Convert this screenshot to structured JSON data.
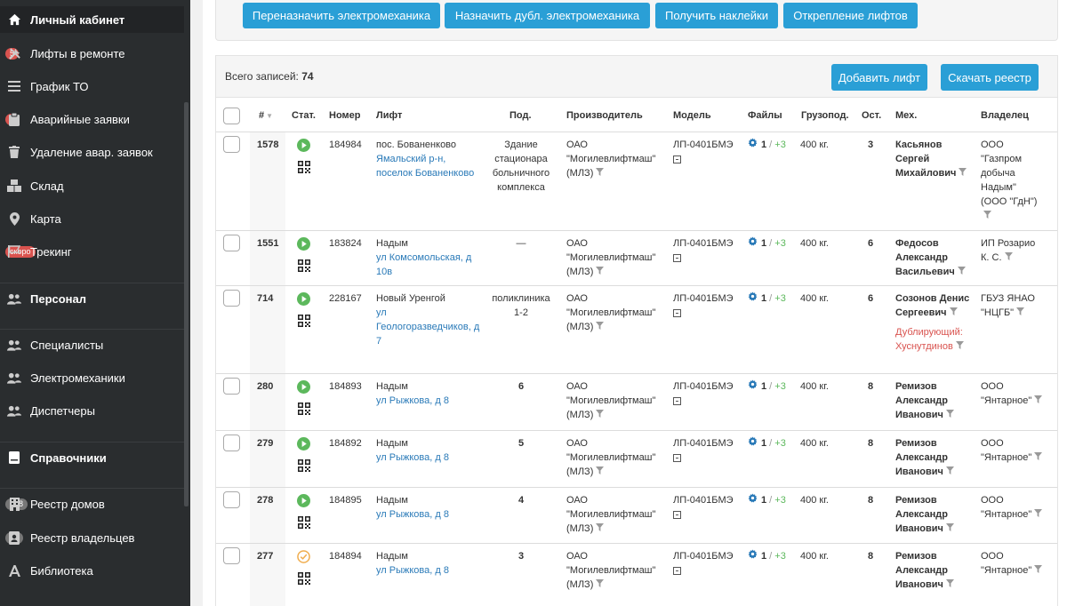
{
  "sidebar": {
    "items": [
      {
        "label": "Личный кабинет",
        "icon": "home-icon",
        "head": true
      },
      {
        "label": "Лифты в ремонте",
        "icon": "tools-icon",
        "badge": "5"
      },
      {
        "label": "График ТО",
        "icon": "list-icon"
      },
      {
        "label": "Аварийные заявки",
        "icon": "clipboard-icon",
        "badge": "9"
      },
      {
        "label": "Удаление авар. заявок",
        "icon": "trash-icon"
      },
      {
        "label": "Склад",
        "icon": "boxes-icon"
      },
      {
        "label": "Карта",
        "icon": "map-marker-icon"
      },
      {
        "label": "Трекинг",
        "icon": "flag-icon",
        "badge": "скоро"
      },
      {
        "label": "Персонал",
        "icon": "users-icon",
        "head": true
      },
      {
        "label": "Специалисты",
        "icon": "users-icon"
      },
      {
        "label": "Электромеханики",
        "icon": "users-icon"
      },
      {
        "label": "Диспетчеры",
        "icon": "users-icon"
      },
      {
        "label": "Справочники",
        "icon": "book-icon",
        "head": true
      },
      {
        "label": "Реестр домов",
        "icon": "building-icon",
        "badge": "158"
      },
      {
        "label": "Реестр владельцев",
        "icon": "id-card-icon",
        "badge": "58"
      },
      {
        "label": "Библиотека",
        "icon": "font-icon"
      }
    ]
  },
  "toolbar": {
    "reassign": "Переназначить электромеханика",
    "assign_dup": "Назначить дубл. электромеханика",
    "stickers": "Получить наклейки",
    "detach": "Открепление лифтов"
  },
  "table_header": {
    "total_label": "Всего записей:",
    "total_value": "74",
    "add_button": "Добавить лифт",
    "download_button": "Скачать реестр"
  },
  "columns": {
    "num": "#",
    "stat": "Стат.",
    "number": "Номер",
    "lift": "Лифт",
    "entrance": "Под.",
    "manufacturer": "Производитель",
    "model": "Модель",
    "files": "Файлы",
    "capacity": "Грузопод.",
    "stops": "Ост.",
    "mechanic": "Мех.",
    "owner": "Владелец"
  },
  "rows": [
    {
      "id": "1578",
      "status": "active",
      "number": "184984",
      "city": "пос. Бованенково",
      "address": "Ямальский р-н, поселок Бованенково",
      "entrance": "Здание стационара больничного комплекса",
      "entrance_bold": false,
      "manufacturer": "ОАО \"Могилевлифтмаш\" (МЛЗ)",
      "model": "ЛП-0401БМЭ",
      "files_count": "1",
      "files_extra": "+3",
      "capacity": "400 кг.",
      "stops": "3",
      "mechanic": "Касьянов Сергей Михайлович",
      "dup": "",
      "owner": "ООО \"Газпром добыча Надым\" (ООО \"ГдН\")"
    },
    {
      "id": "1551",
      "status": "active",
      "number": "183824",
      "city": "Надым",
      "address": "ул Комсомольская, д 10в",
      "entrance": "—",
      "entrance_bold": false,
      "manufacturer": "ОАО \"Могилевлифтмаш\" (МЛЗ)",
      "model": "ЛП-0401БМЭ",
      "files_count": "1",
      "files_extra": "+3",
      "capacity": "400 кг.",
      "stops": "6",
      "mechanic": "Федосов Александр Васильевич",
      "dup": "",
      "owner": "ИП Розарио К. С."
    },
    {
      "id": "714",
      "status": "active",
      "number": "228167",
      "city": "Новый Уренгой",
      "address": "ул Геологоразведчиков, д 7",
      "entrance": "поликлиника 1-2",
      "entrance_bold": false,
      "manufacturer": "ОАО \"Могилевлифтмаш\" (МЛЗ)",
      "model": "ЛП-0401БМЭ",
      "files_count": "1",
      "files_extra": "+3",
      "capacity": "400 кг.",
      "stops": "6",
      "mechanic": "Созонов Денис Сергеевич",
      "dup": "Дублирующий: Хуснутдинов",
      "owner": "ГБУЗ ЯНАО \"НЦГБ\""
    },
    {
      "id": "280",
      "status": "active",
      "number": "184893",
      "city": "Надым",
      "address": "ул Рыжкова, д 8",
      "entrance": "6",
      "entrance_bold": true,
      "manufacturer": "ОАО \"Могилевлифтмаш\" (МЛЗ)",
      "model": "ЛП-0401БМЭ",
      "files_count": "1",
      "files_extra": "+3",
      "capacity": "400 кг.",
      "stops": "8",
      "mechanic": "Ремизов Александр Иванович",
      "dup": "",
      "owner": "ООО \"Янтарное\""
    },
    {
      "id": "279",
      "status": "active",
      "number": "184892",
      "city": "Надым",
      "address": "ул Рыжкова, д 8",
      "entrance": "5",
      "entrance_bold": true,
      "manufacturer": "ОАО \"Могилевлифтмаш\" (МЛЗ)",
      "model": "ЛП-0401БМЭ",
      "files_count": "1",
      "files_extra": "+3",
      "capacity": "400 кг.",
      "stops": "8",
      "mechanic": "Ремизов Александр Иванович",
      "dup": "",
      "owner": "ООО \"Янтарное\""
    },
    {
      "id": "278",
      "status": "active",
      "number": "184895",
      "city": "Надым",
      "address": "ул Рыжкова, д 8",
      "entrance": "4",
      "entrance_bold": true,
      "manufacturer": "ОАО \"Могилевлифтмаш\" (МЛЗ)",
      "model": "ЛП-0401БМЭ",
      "files_count": "1",
      "files_extra": "+3",
      "capacity": "400 кг.",
      "stops": "8",
      "mechanic": "Ремизов Александр Иванович",
      "dup": "",
      "owner": "ООО \"Янтарное\""
    },
    {
      "id": "277",
      "status": "check",
      "number": "184894",
      "city": "Надым",
      "address": "ул Рыжкова, д 8",
      "entrance": "3",
      "entrance_bold": true,
      "manufacturer": "ОАО \"Могилевлифтмаш\" (МЛЗ)",
      "model": "ЛП-0401БМЭ",
      "files_count": "1",
      "files_extra": "+3",
      "capacity": "400 кг.",
      "stops": "8",
      "mechanic": "Ремизов Александр Иванович",
      "dup": "",
      "owner": "ООО \"Янтарное\""
    }
  ],
  "colors": {
    "accent": "#2a9fd6",
    "sidebar": "#2a2d2f",
    "status_green": "#5cb85c",
    "status_orange": "#f0ad4e",
    "dup_red": "#d9534f",
    "link": "#2a7ab8"
  }
}
